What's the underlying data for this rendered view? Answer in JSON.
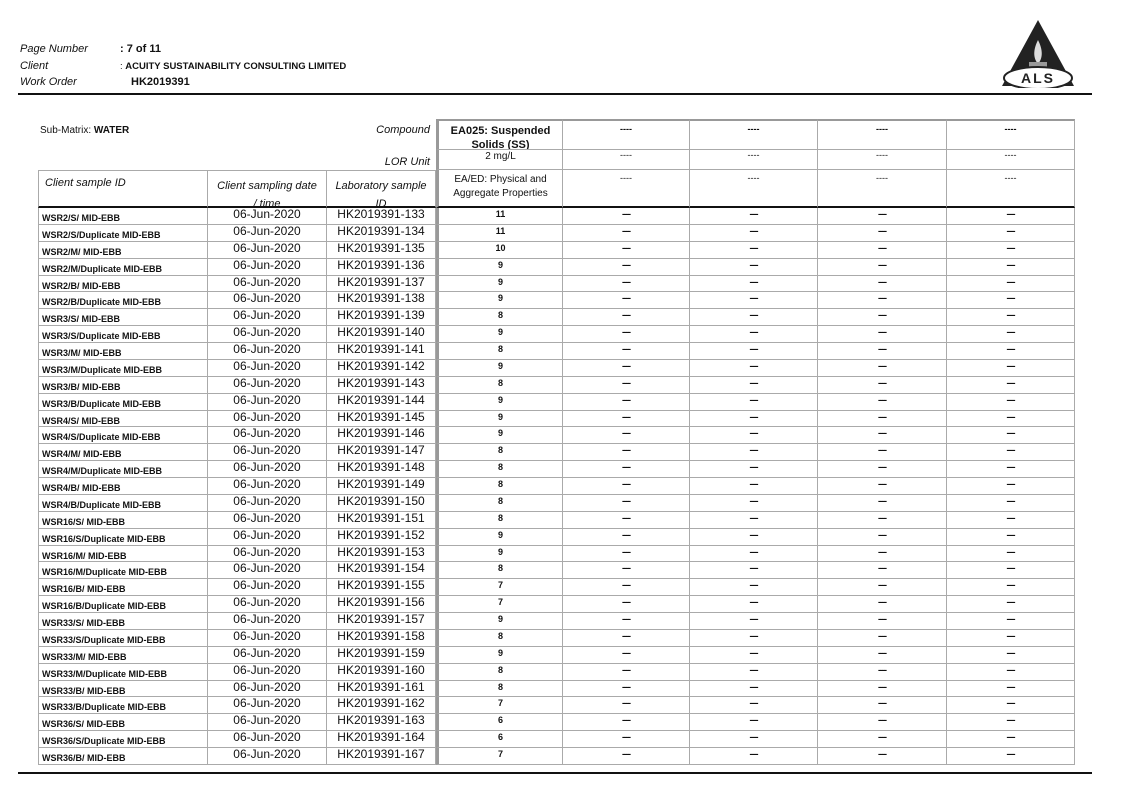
{
  "header": {
    "page_number_label": "Page Number",
    "page_number_value": "7 of 11",
    "client_label": "Client",
    "client_value": "ACUITY SUSTAINABILITY CONSULTING LIMITED",
    "work_order_label": "Work Order",
    "work_order_value": "HK2019391",
    "separator": ":",
    "logo_text": "ALS"
  },
  "table": {
    "sub_matrix_label": "Sub-Matrix:",
    "sub_matrix_value": "WATER",
    "compound_label": "Compound",
    "lor_label": "LOR Unit",
    "compound": "EA025: Suspended Solids (SS)",
    "lor": "2 mg/L",
    "method": "EA/ED: Physical and Aggregate Properties",
    "empty_compound": "----",
    "empty_lor": "----",
    "empty_method": "----",
    "empty_value": "----",
    "columns": {
      "sample_id": "Client sample ID",
      "sampling_date_1": "Client sampling date",
      "sampling_date_2": "/ time",
      "lab_id_1": "Laboratory sample",
      "lab_id_2": "ID"
    },
    "rows": [
      [
        "WSR2/S/ MID-EBB",
        "06-Jun-2020",
        "HK2019391-133",
        "11"
      ],
      [
        "WSR2/S/Duplicate MID-EBB",
        "06-Jun-2020",
        "HK2019391-134",
        "11"
      ],
      [
        "WSR2/M/ MID-EBB",
        "06-Jun-2020",
        "HK2019391-135",
        "10"
      ],
      [
        "WSR2/M/Duplicate MID-EBB",
        "06-Jun-2020",
        "HK2019391-136",
        "9"
      ],
      [
        "WSR2/B/ MID-EBB",
        "06-Jun-2020",
        "HK2019391-137",
        "9"
      ],
      [
        "WSR2/B/Duplicate MID-EBB",
        "06-Jun-2020",
        "HK2019391-138",
        "9"
      ],
      [
        "WSR3/S/ MID-EBB",
        "06-Jun-2020",
        "HK2019391-139",
        "8"
      ],
      [
        "WSR3/S/Duplicate MID-EBB",
        "06-Jun-2020",
        "HK2019391-140",
        "9"
      ],
      [
        "WSR3/M/ MID-EBB",
        "06-Jun-2020",
        "HK2019391-141",
        "8"
      ],
      [
        "WSR3/M/Duplicate MID-EBB",
        "06-Jun-2020",
        "HK2019391-142",
        "9"
      ],
      [
        "WSR3/B/ MID-EBB",
        "06-Jun-2020",
        "HK2019391-143",
        "8"
      ],
      [
        "WSR3/B/Duplicate MID-EBB",
        "06-Jun-2020",
        "HK2019391-144",
        "9"
      ],
      [
        "WSR4/S/ MID-EBB",
        "06-Jun-2020",
        "HK2019391-145",
        "9"
      ],
      [
        "WSR4/S/Duplicate MID-EBB",
        "06-Jun-2020",
        "HK2019391-146",
        "9"
      ],
      [
        "WSR4/M/ MID-EBB",
        "06-Jun-2020",
        "HK2019391-147",
        "8"
      ],
      [
        "WSR4/M/Duplicate MID-EBB",
        "06-Jun-2020",
        "HK2019391-148",
        "8"
      ],
      [
        "WSR4/B/ MID-EBB",
        "06-Jun-2020",
        "HK2019391-149",
        "8"
      ],
      [
        "WSR4/B/Duplicate MID-EBB",
        "06-Jun-2020",
        "HK2019391-150",
        "8"
      ],
      [
        "WSR16/S/ MID-EBB",
        "06-Jun-2020",
        "HK2019391-151",
        "8"
      ],
      [
        "WSR16/S/Duplicate MID-EBB",
        "06-Jun-2020",
        "HK2019391-152",
        "9"
      ],
      [
        "WSR16/M/ MID-EBB",
        "06-Jun-2020",
        "HK2019391-153",
        "9"
      ],
      [
        "WSR16/M/Duplicate MID-EBB",
        "06-Jun-2020",
        "HK2019391-154",
        "8"
      ],
      [
        "WSR16/B/ MID-EBB",
        "06-Jun-2020",
        "HK2019391-155",
        "7"
      ],
      [
        "WSR16/B/Duplicate MID-EBB",
        "06-Jun-2020",
        "HK2019391-156",
        "7"
      ],
      [
        "WSR33/S/ MID-EBB",
        "06-Jun-2020",
        "HK2019391-157",
        "9"
      ],
      [
        "WSR33/S/Duplicate MID-EBB",
        "06-Jun-2020",
        "HK2019391-158",
        "8"
      ],
      [
        "WSR33/M/ MID-EBB",
        "06-Jun-2020",
        "HK2019391-159",
        "9"
      ],
      [
        "WSR33/M/Duplicate MID-EBB",
        "06-Jun-2020",
        "HK2019391-160",
        "8"
      ],
      [
        "WSR33/B/ MID-EBB",
        "06-Jun-2020",
        "HK2019391-161",
        "8"
      ],
      [
        "WSR33/B/Duplicate MID-EBB",
        "06-Jun-2020",
        "HK2019391-162",
        "7"
      ],
      [
        "WSR36/S/ MID-EBB",
        "06-Jun-2020",
        "HK2019391-163",
        "6"
      ],
      [
        "WSR36/S/Duplicate MID-EBB",
        "06-Jun-2020",
        "HK2019391-164",
        "6"
      ],
      [
        "WSR36/B/ MID-EBB",
        "06-Jun-2020",
        "HK2019391-167",
        "7"
      ]
    ]
  }
}
